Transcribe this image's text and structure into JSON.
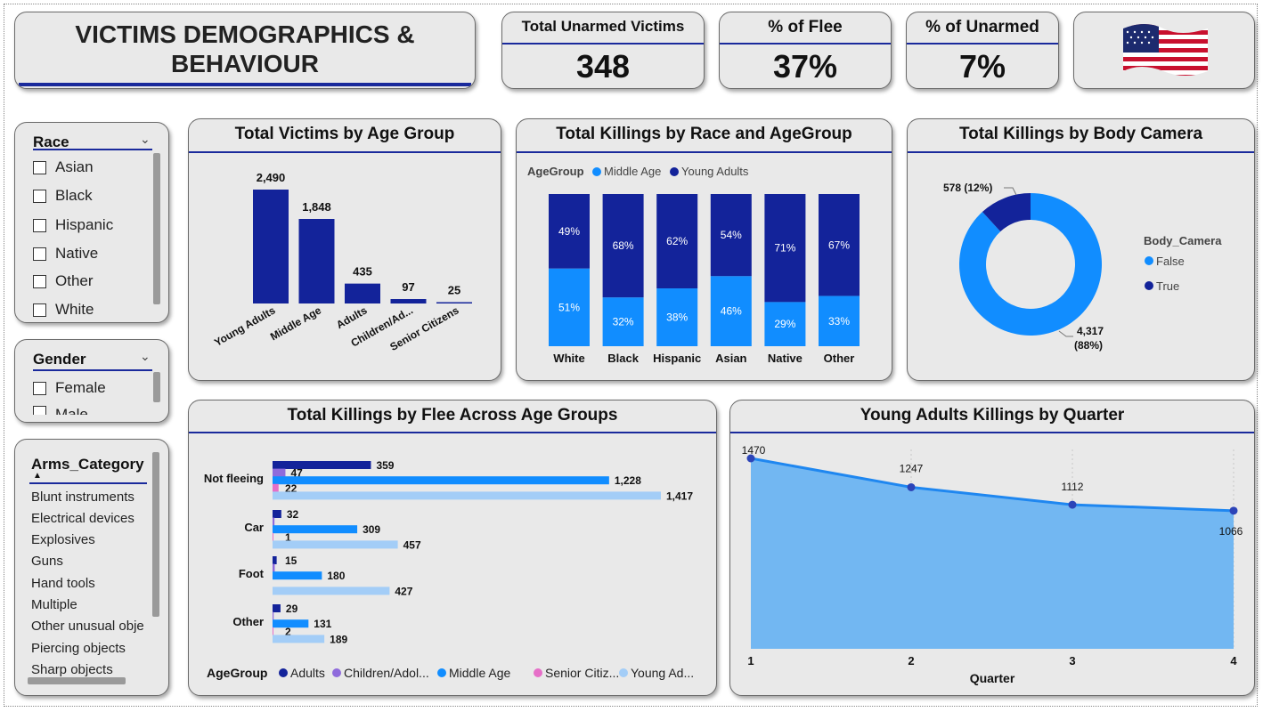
{
  "header": {
    "title_line1": "VICTIMS DEMOGRAPHICS &",
    "title_line2": "BEHAVIOUR",
    "flag_icon": "us-flag-icon"
  },
  "kpis": [
    {
      "label": "Total Unarmed Victims",
      "value": "348"
    },
    {
      "label": "% of Flee",
      "value": "37%"
    },
    {
      "label": "% of Unarmed",
      "value": "7%"
    }
  ],
  "slicers": {
    "race": {
      "title": "Race",
      "items": [
        "Asian",
        "Black",
        "Hispanic",
        "Native",
        "Other",
        "White"
      ]
    },
    "gender": {
      "title": "Gender",
      "items": [
        "Female",
        "Male"
      ]
    },
    "arms": {
      "title": "Arms_Category",
      "items": [
        "Blunt instruments",
        "Electrical devices",
        "Explosives",
        "Guns",
        "Hand tools",
        "Multiple",
        "Other unusual obje",
        "Piercing objects",
        "Sharp objects"
      ]
    }
  },
  "colors": {
    "dark_blue": "#13239a",
    "mid_blue": "#118dff",
    "light_blue": "#a3cdf7",
    "purple": "#8f6bdc",
    "pink": "#e66fc8",
    "area_fill": "#72b7f2",
    "line_blue": "#1f87f0"
  },
  "chart_data": [
    {
      "id": "age_group",
      "type": "bar",
      "title": "Total Victims by Age Group",
      "categories": [
        "Young Adults",
        "Middle Age",
        "Adults",
        "Children/Ad...",
        "Senior Citizens"
      ],
      "values": [
        2490,
        1848,
        435,
        97,
        25
      ],
      "value_labels": [
        "2,490",
        "1,848",
        "435",
        "97",
        "25"
      ]
    },
    {
      "id": "race_age",
      "type": "bar",
      "title": "Total Killings by Race and AgeGroup",
      "stacked": "100%",
      "legend_title": "AgeGroup",
      "categories": [
        "White",
        "Black",
        "Hispanic",
        "Asian",
        "Native",
        "Other"
      ],
      "series": [
        {
          "name": "Middle Age",
          "values": [
            51,
            32,
            38,
            46,
            29,
            33
          ],
          "labels": [
            "51%",
            "32%",
            "38%",
            "46%",
            "29%",
            "33%"
          ]
        },
        {
          "name": "Young Adults",
          "values": [
            49,
            68,
            62,
            54,
            71,
            67
          ],
          "labels": [
            "49%",
            "68%",
            "62%",
            "54%",
            "71%",
            "67%"
          ]
        }
      ]
    },
    {
      "id": "body_camera",
      "type": "pie",
      "title": "Total Killings by Body Camera",
      "legend_title": "Body_Camera",
      "slices": [
        {
          "name": "False",
          "value": 4317,
          "label_value": "4,317",
          "label_pct": "(88%)"
        },
        {
          "name": "True",
          "value": 578,
          "label": "578 (12%)"
        }
      ]
    },
    {
      "id": "flee_age",
      "type": "bar",
      "orientation": "horizontal",
      "title": "Total Killings by Flee Across Age Groups",
      "legend_title": "AgeGroup",
      "legend_labels": [
        "Adults",
        "Children/Adol...",
        "Middle Age",
        "Senior Citiz...",
        "Young Ad..."
      ],
      "categories": [
        "Not fleeing",
        "Car",
        "Foot",
        "Other"
      ],
      "series": [
        {
          "name": "Adults",
          "values": [
            359,
            32,
            15,
            29
          ],
          "labels": [
            "359",
            "32",
            "15",
            "29"
          ]
        },
        {
          "name": "Children/Adolescents",
          "values": [
            47,
            7,
            8,
            4
          ],
          "labels": [
            "47",
            "",
            "",
            ""
          ]
        },
        {
          "name": "Middle Age",
          "values": [
            1228,
            309,
            180,
            131
          ],
          "labels": [
            "1,228",
            "309",
            "180",
            "131"
          ]
        },
        {
          "name": "Senior Citizens",
          "values": [
            22,
            1,
            0,
            2
          ],
          "labels": [
            "22",
            "1",
            "",
            "2"
          ]
        },
        {
          "name": "Young Adults",
          "values": [
            1417,
            457,
            427,
            189
          ],
          "labels": [
            "1,417",
            "457",
            "427",
            "189"
          ]
        }
      ]
    },
    {
      "id": "young_quarter",
      "type": "area",
      "title": "Young Adults Killings by Quarter",
      "xlabel": "Quarter",
      "x": [
        1,
        2,
        3,
        4
      ],
      "x_labels": [
        "1",
        "2",
        "3",
        "4"
      ],
      "values": [
        1470,
        1247,
        1112,
        1066
      ],
      "value_labels": [
        "1470",
        "1247",
        "1112",
        "1066"
      ]
    }
  ]
}
